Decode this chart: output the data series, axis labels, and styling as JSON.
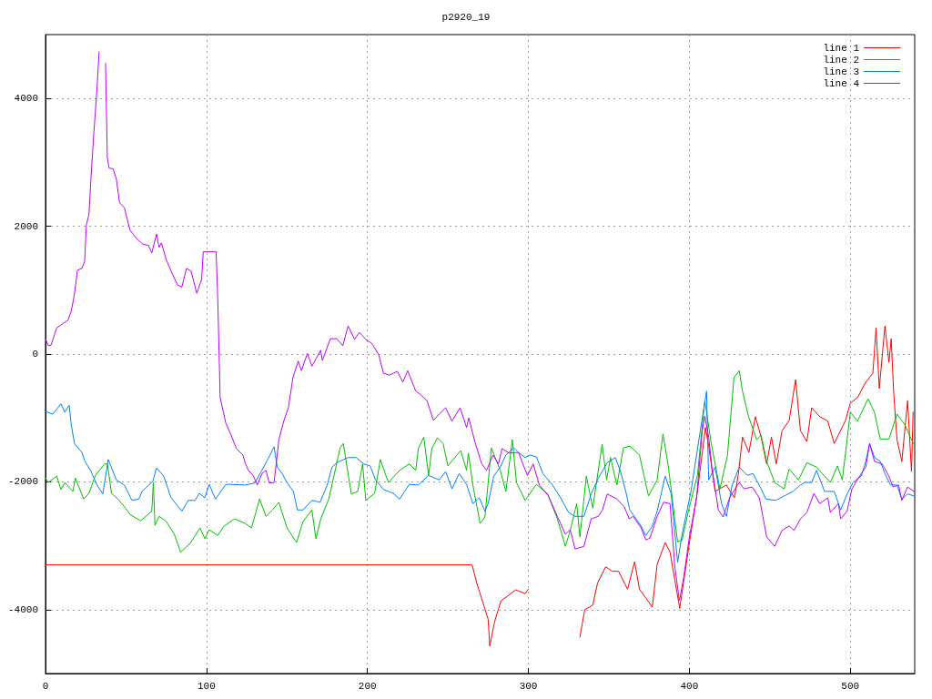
{
  "chart_data": {
    "type": "line",
    "title": "p2920_19",
    "xlim": [
      0,
      540
    ],
    "xticks": [
      0,
      100,
      200,
      300,
      400,
      500
    ],
    "ylim": [
      -5000,
      5000
    ],
    "yticks": [
      -4000,
      -2000,
      0,
      2000,
      4000
    ],
    "grid": true,
    "legend": "top right",
    "marker": "none",
    "line_style": "solid",
    "series": [
      {
        "name": "line 1",
        "color": "#ff0000",
        "x": [
          0,
          265,
          268,
          275,
          276,
          279,
          283,
          287,
          292,
          298,
          300,
          301,
          315,
          329,
          332,
          335,
          340,
          343,
          348,
          352,
          356,
          361.6,
          366,
          369,
          377,
          380,
          385,
          388,
          394,
          400,
          405,
          410,
          412,
          416,
          423,
          428,
          430.5,
          433,
          437,
          441,
          444.6,
          448,
          451,
          454,
          457.6,
          462,
          466,
          469,
          473,
          476,
          481,
          486,
          490,
          497,
          500,
          504.5,
          509.6,
          514,
          516,
          518,
          521.5,
          524,
          525.4,
          527,
          529,
          532,
          535.6,
          538,
          539
        ],
        "values": [
          -3300,
          -3300,
          -3590,
          -4150,
          -4570,
          -4190,
          -3860,
          -3790,
          -3690,
          -3750,
          -3680,
          null,
          null,
          null,
          -4430,
          -4000,
          -3930,
          -3580,
          -3330,
          -3400,
          -3400,
          -3680,
          -3250,
          -3680,
          -3960,
          -3290,
          -2950,
          -3100,
          -3980,
          -2960,
          -2150,
          -1150,
          -1440,
          -2150,
          -2050,
          -2250,
          -1870,
          -1300,
          -1540,
          -980,
          -1300,
          -1720,
          -1300,
          -1720,
          -1200,
          -1040,
          -400,
          -1200,
          -1370,
          -840,
          -980,
          -1050,
          -1400,
          -1040,
          -770,
          -680,
          -440,
          -300,
          410,
          -540,
          440,
          -130,
          240,
          -630,
          -1340,
          -1680,
          -730,
          -1840,
          -910
        ]
      },
      {
        "name": "line 2",
        "color": "#00c000",
        "x": [
          0,
          1.7,
          7,
          9.6,
          12,
          17,
          18.6,
          23.7,
          27,
          31,
          36.7,
          38.5,
          41,
          45,
          49,
          52.5,
          59,
          66,
          67,
          68,
          70.6,
          75,
          80,
          84,
          90,
          96,
          99,
          101.7,
          107,
          111,
          117.5,
          124,
          128,
          133,
          137,
          141,
          145,
          150,
          156,
          160,
          165.5,
          168,
          171,
          176,
          183,
          185,
          190,
          194,
          197,
          199,
          204.5,
          208,
          213,
          220,
          226,
          230,
          231.6,
          235,
          238,
          240,
          243.5,
          247,
          250,
          258,
          261.6,
          262.7,
          265.5,
          270,
          273,
          277,
          282.5,
          286,
          289,
          290,
          292.6,
          298,
          305,
          312,
          318,
          323,
          326,
          330,
          332,
          336,
          340,
          345.8,
          348.6,
          351,
          355,
          359,
          363,
          369,
          374.6,
          380,
          383.6,
          387,
          392.7,
          395.5,
          400,
          405,
          409.6,
          413.6,
          419,
          423.7,
          427.7,
          431,
          433,
          436.7,
          441.8,
          444.6,
          448,
          453,
          458.8,
          462,
          467.8,
          473,
          479,
          487.6,
          492,
          495,
          498,
          500,
          504.5,
          511,
          515,
          518.6,
          524,
          529,
          534,
          538,
          539.5
        ],
        "values": [
          -1940,
          -2010,
          -1910,
          -2120,
          -2010,
          -2150,
          -1940,
          -2270,
          -2180,
          -1900,
          -1720,
          -1720,
          -2180,
          -2270,
          -2390,
          -2510,
          -2610,
          -2460,
          -2010,
          -2680,
          -2540,
          -2620,
          -2820,
          -3100,
          -2960,
          -2720,
          -2890,
          -2750,
          -2840,
          -2690,
          -2580,
          -2650,
          -2720,
          -2270,
          -2540,
          -2440,
          -2320,
          -2720,
          -2950,
          -2620,
          -2440,
          -2890,
          -2580,
          -2270,
          -1470,
          -1400,
          -2190,
          -2150,
          -1720,
          -2290,
          -2180,
          -1650,
          -2010,
          -1820,
          -1720,
          -1820,
          -1480,
          -1300,
          -1900,
          -1480,
          -1310,
          -1400,
          -1750,
          -1510,
          -1820,
          -1550,
          -2050,
          -2650,
          -2550,
          -1470,
          -1820,
          -2150,
          -1550,
          -1340,
          -2010,
          -2290,
          -2040,
          -2190,
          -2580,
          -3010,
          -2760,
          -2340,
          -2860,
          -1910,
          -2410,
          -1410,
          -1970,
          -1620,
          -2050,
          -1470,
          -1440,
          -1580,
          -2220,
          -1970,
          -1250,
          -1770,
          -2940,
          -2910,
          -2390,
          -1900,
          -730,
          -1400,
          -2110,
          -1580,
          -370,
          -260,
          -580,
          -970,
          -1340,
          -1270,
          -1680,
          -2010,
          -2110,
          -1800,
          -1970,
          -1700,
          -1770,
          -2010,
          -1750,
          -1970,
          -1340,
          -910,
          -1050,
          -700,
          -910,
          -1330,
          -1330,
          -940,
          -1110,
          -1340,
          -1410
        ]
      },
      {
        "name": "line 3",
        "color": "#0080ff",
        "x": [
          0,
          4.5,
          9.6,
          12,
          14.7,
          16,
          18,
          22.6,
          24.5,
          28,
          32,
          35.6,
          39,
          44,
          49,
          53.7,
          58,
          60,
          66.7,
          69,
          73.4,
          78,
          84.7,
          88.7,
          93,
          95.5,
          99,
          101.7,
          105.6,
          112,
          115,
          124,
          130,
          134,
          139.5,
          142,
          144,
          147,
          150,
          154,
          156.5,
          160,
          165.5,
          170.6,
          175,
          178,
          181,
          188,
          193,
          197.7,
          201.7,
          205,
          210,
          216,
          220,
          226,
          231.6,
          238,
          244.6,
          248.6,
          252.5,
          257,
          261.6,
          265.5,
          269.5,
          273,
          275,
          278.5,
          282.5,
          286,
          291,
          293.8,
          298,
          301,
          305,
          309,
          314.7,
          320,
          325,
          329,
          334.5,
          339,
          343.5,
          349,
          354,
          357,
          360.5,
          363,
          370,
          373,
          377,
          380,
          385,
          388.7,
          392.7,
          395.5,
          401,
          406.8,
          410.7,
          412,
          416,
          420,
          423,
          426.6,
          431,
          436,
          439.5,
          444.6,
          447.5,
          453.7,
          459,
          464.4,
          469,
          471.8,
          476,
          479,
          484,
          490,
          494,
          498,
          501.7,
          506.8,
          509.6,
          512,
          515,
          518.6,
          521.5,
          525,
          529,
          532,
          535.6,
          539.5
        ],
        "values": [
          -900,
          -940,
          -780,
          -910,
          -800,
          -1110,
          -1400,
          -1540,
          -1680,
          -1820,
          -2050,
          -2190,
          -1650,
          -1970,
          -2050,
          -2290,
          -2270,
          -2150,
          -1990,
          -1780,
          -1910,
          -2250,
          -2460,
          -2290,
          -2290,
          -2180,
          -2250,
          -2040,
          -2270,
          -2040,
          -2040,
          -2050,
          -2020,
          -1840,
          -1580,
          -1450,
          -1770,
          -1870,
          -2010,
          -2150,
          -2440,
          -2440,
          -2290,
          -2320,
          -2050,
          -1770,
          -1700,
          -1620,
          -1620,
          -1720,
          -1750,
          -1970,
          -2120,
          -2180,
          -2270,
          -2040,
          -2050,
          -1900,
          -1970,
          -1840,
          -2110,
          -1870,
          -2040,
          -2340,
          -2250,
          -2460,
          -2340,
          -1910,
          -1770,
          -1580,
          -1470,
          -1540,
          -1620,
          -1580,
          -1610,
          -1870,
          -2040,
          -2250,
          -2480,
          -2540,
          -2540,
          -2190,
          -1940,
          -1700,
          -1620,
          -1820,
          -2150,
          -2440,
          -2690,
          -2840,
          -2690,
          -2460,
          -1910,
          -2190,
          -3260,
          -2820,
          -2150,
          -1200,
          -580,
          -1970,
          -1770,
          -2340,
          -2540,
          -2050,
          -1770,
          -1900,
          -1870,
          -2110,
          -2270,
          -2290,
          -2220,
          -2150,
          -2050,
          -2010,
          -2010,
          -1820,
          -2150,
          -2150,
          -2440,
          -2190,
          -2010,
          -1910,
          -1680,
          -1400,
          -1620,
          -1680,
          -1870,
          -2050,
          -2050,
          -2270,
          -2190,
          -2220
        ]
      },
      {
        "name": "line 4",
        "color": "#c000ff",
        "x": [
          0,
          1.7,
          3.4,
          7,
          11,
          14,
          16,
          18,
          19.8,
          22.6,
          24.3,
          25.4,
          27,
          28,
          30,
          32,
          33.3,
          34,
          35,
          36,
          37.3,
          38.4,
          39.5,
          42,
          44,
          46,
          49,
          52.5,
          56.5,
          60.5,
          64,
          66,
          69,
          70.6,
          72,
          75,
          78,
          82,
          84.7,
          87.6,
          90.4,
          94,
          97,
          98,
          106,
          107,
          108.5,
          112,
          115,
          118.6,
          122.6,
          124,
          126,
          129,
          131.6,
          134.5,
          137,
          139,
          142,
          145,
          148,
          151,
          153.7,
          157,
          159,
          162.7,
          165.5,
          171,
          172,
          177,
          181,
          184.7,
          188,
          192,
          195,
          199,
          203,
          207,
          210,
          213.6,
          218.6,
          222,
          225,
          230,
          232.8,
          237,
          241,
          244.6,
          248.6,
          252.5,
          257.6,
          261.6,
          263,
          266.7,
          271,
          274,
          278,
          281.4,
          283.6,
          288,
          293.8,
          299.4,
          303,
          306.8,
          312.4,
          318,
          323,
          326,
          329,
          334.5,
          339,
          343.5,
          346,
          349,
          355,
          359.5,
          362.7,
          365,
          370,
          373,
          375.5,
          380,
          384,
          388,
          391,
          393.8,
          396.6,
          400,
          404.5,
          408,
          409.6,
          412,
          414,
          418,
          421,
          425,
          431,
          434,
          439,
          443.5,
          448,
          453,
          457.6,
          462,
          465,
          469,
          473,
          477.4,
          481,
          486,
          487.6,
          492.6,
          494,
          498,
          501,
          506.8,
          509.6,
          512,
          515,
          519.8,
          523.7,
          526.6,
          530,
          532,
          535.6,
          539.5
        ],
        "values": [
          240,
          130,
          140,
          410,
          480,
          530,
          670,
          940,
          1310,
          1340,
          1450,
          2020,
          2190,
          2650,
          3450,
          4160,
          4730,
          null,
          null,
          null,
          4550,
          3080,
          2910,
          2900,
          2740,
          2370,
          2290,
          1940,
          1810,
          1720,
          1700,
          1580,
          1880,
          1670,
          1740,
          1480,
          1300,
          1080,
          1050,
          1340,
          1300,
          950,
          1170,
          1600,
          1600,
          880,
          -680,
          -1080,
          -1250,
          -1480,
          -1580,
          -1700,
          -1820,
          -1900,
          -2050,
          -1870,
          -1820,
          -2020,
          -2010,
          -1340,
          -1050,
          -830,
          -370,
          -110,
          -260,
          10,
          -190,
          60,
          -100,
          240,
          240,
          130,
          440,
          230,
          340,
          230,
          160,
          -10,
          -300,
          -330,
          -270,
          -440,
          -260,
          -580,
          -630,
          -730,
          -1040,
          -940,
          -840,
          -1050,
          -840,
          -1150,
          -1000,
          -1370,
          -1720,
          -1820,
          -1580,
          -1720,
          -1480,
          -1550,
          -1540,
          -1900,
          -1720,
          -2050,
          -2220,
          -2540,
          -2820,
          -2750,
          -3050,
          -3010,
          -2580,
          -2540,
          -2440,
          -2190,
          -2270,
          -2390,
          -2580,
          -2540,
          -2720,
          -2910,
          -2880,
          -2540,
          -2320,
          -2340,
          -3330,
          -3860,
          -3480,
          -2860,
          -2250,
          -1200,
          -970,
          -1300,
          -1770,
          -2440,
          -2550,
          -2250,
          -2010,
          -2110,
          -2080,
          -2250,
          -2860,
          -3010,
          -2760,
          -2690,
          -2760,
          -2580,
          -2480,
          -2180,
          -2340,
          -2250,
          -2480,
          -2340,
          -2580,
          -2460,
          -2110,
          -1870,
          -1770,
          -1400,
          -1680,
          -1720,
          -1900,
          -2080,
          -2050,
          -2290,
          -2080,
          -2150
        ]
      }
    ]
  }
}
